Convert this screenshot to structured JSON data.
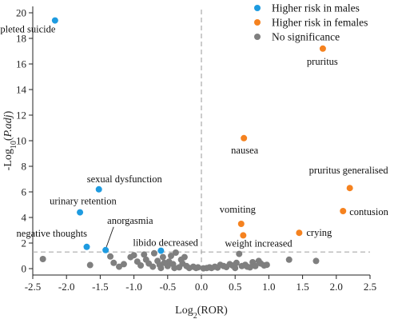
{
  "chart_data": {
    "type": "scatter",
    "xlabel": "Log",
    "xlabel_sub": "2",
    "xlabel_tail": "(ROR)",
    "ylabel_pre": "-Log",
    "ylabel_sub": "10",
    "ylabel_italic": "P.adj",
    "xlim": [
      -2.5,
      2.5
    ],
    "ylim": [
      -0.5,
      20.5
    ],
    "x_ticks": [
      -2.5,
      -2.0,
      -1.5,
      -1.0,
      -0.5,
      0.0,
      0.5,
      1.0,
      1.5,
      2.0,
      2.5
    ],
    "x_tick_labels": [
      "-2.5",
      "-2.0",
      "-1.5",
      "-1.0",
      "-0.5",
      "0.0",
      "0.5",
      "1.0",
      "1.5",
      "2.0",
      "2.5"
    ],
    "y_ticks": [
      0,
      2,
      4,
      6,
      8,
      10,
      12,
      14,
      16,
      18,
      20
    ],
    "y_tick_labels": [
      "0",
      "2",
      "4",
      "6",
      "8",
      "10",
      "12",
      "14",
      "16",
      "18",
      "20"
    ],
    "threshold_y": 1.3,
    "threshold_x": 0.0,
    "legend_position": "top-right",
    "series": [
      {
        "name": "Higher risk in males",
        "color": "#1e9be0",
        "points": [
          {
            "x": -2.17,
            "y": 19.4,
            "label": "completed suicide"
          },
          {
            "x": -1.52,
            "y": 6.2,
            "label": "sexual dysfunction"
          },
          {
            "x": -1.8,
            "y": 4.4,
            "label": "urinary retention"
          },
          {
            "x": -1.7,
            "y": 1.7,
            "label": "negative thoughts"
          },
          {
            "x": -1.42,
            "y": 1.45,
            "label": "anorgasmia"
          },
          {
            "x": -0.6,
            "y": 1.4,
            "label": "libido decreased"
          }
        ]
      },
      {
        "name": "Higher risk in females",
        "color": "#f5821f",
        "points": [
          {
            "x": 1.8,
            "y": 17.2,
            "label": "pruritus"
          },
          {
            "x": 0.63,
            "y": 10.2,
            "label": "nausea"
          },
          {
            "x": 2.2,
            "y": 6.3,
            "label": "pruritus generalised"
          },
          {
            "x": 2.1,
            "y": 4.5,
            "label": "contusion"
          },
          {
            "x": 0.59,
            "y": 3.5,
            "label": "vomiting"
          },
          {
            "x": 1.45,
            "y": 2.8,
            "label": "crying"
          },
          {
            "x": 0.62,
            "y": 2.6,
            "label": "weight increased"
          }
        ]
      },
      {
        "name": "No significance",
        "color": "#7f7f7f",
        "points": [
          {
            "x": -2.35,
            "y": 0.75
          },
          {
            "x": -1.65,
            "y": 0.28
          },
          {
            "x": -1.35,
            "y": 0.95
          },
          {
            "x": -1.3,
            "y": 0.45
          },
          {
            "x": -1.22,
            "y": 0.15
          },
          {
            "x": -1.15,
            "y": 0.35
          },
          {
            "x": -1.05,
            "y": 0.9
          },
          {
            "x": -1.0,
            "y": 1.05
          },
          {
            "x": -0.95,
            "y": 0.55
          },
          {
            "x": -0.9,
            "y": 0.25
          },
          {
            "x": -0.85,
            "y": 1.1
          },
          {
            "x": -0.82,
            "y": 0.7
          },
          {
            "x": -0.78,
            "y": 0.4
          },
          {
            "x": -0.72,
            "y": 0.15
          },
          {
            "x": -0.7,
            "y": 1.2
          },
          {
            "x": -0.65,
            "y": 0.6
          },
          {
            "x": -0.62,
            "y": 0.3
          },
          {
            "x": -0.57,
            "y": 0.9
          },
          {
            "x": -0.5,
            "y": 0.2
          },
          {
            "x": -0.48,
            "y": 0.55
          },
          {
            "x": -0.42,
            "y": 0.35
          },
          {
            "x": -0.38,
            "y": 1.25
          },
          {
            "x": -0.33,
            "y": 0.1
          },
          {
            "x": -0.3,
            "y": 0.7
          },
          {
            "x": -0.28,
            "y": 0.4
          },
          {
            "x": -0.22,
            "y": 0.2
          },
          {
            "x": -0.18,
            "y": 0.05
          },
          {
            "x": -0.12,
            "y": 0.15
          },
          {
            "x": -0.08,
            "y": 0.05
          },
          {
            "x": -0.05,
            "y": 0.1
          },
          {
            "x": -0.4,
            "y": 0.05
          },
          {
            "x": -0.6,
            "y": 0.05
          },
          {
            "x": -0.25,
            "y": 0.9
          },
          {
            "x": -0.45,
            "y": 1.0
          },
          {
            "x": -0.55,
            "y": 0.45
          },
          {
            "x": 0.03,
            "y": 0.02
          },
          {
            "x": 0.08,
            "y": 0.05
          },
          {
            "x": 0.12,
            "y": 0.1
          },
          {
            "x": 0.15,
            "y": 0.05
          },
          {
            "x": 0.2,
            "y": 0.15
          },
          {
            "x": 0.24,
            "y": 0.08
          },
          {
            "x": 0.28,
            "y": 0.3
          },
          {
            "x": 0.33,
            "y": 0.2
          },
          {
            "x": 0.37,
            "y": 0.12
          },
          {
            "x": 0.42,
            "y": 0.35
          },
          {
            "x": 0.46,
            "y": 0.25
          },
          {
            "x": 0.5,
            "y": 0.05
          },
          {
            "x": 0.52,
            "y": 0.45
          },
          {
            "x": 0.56,
            "y": 1.15
          },
          {
            "x": 0.6,
            "y": 0.2
          },
          {
            "x": 0.65,
            "y": 0.3
          },
          {
            "x": 0.68,
            "y": 0.15
          },
          {
            "x": 0.72,
            "y": 0.1
          },
          {
            "x": 0.76,
            "y": 0.5
          },
          {
            "x": 0.8,
            "y": 0.2
          },
          {
            "x": 0.85,
            "y": 0.6
          },
          {
            "x": 0.88,
            "y": 0.4
          },
          {
            "x": 0.93,
            "y": 0.25
          },
          {
            "x": 0.97,
            "y": 0.3
          },
          {
            "x": 1.3,
            "y": 0.7
          },
          {
            "x": 1.7,
            "y": 0.6
          }
        ]
      }
    ]
  }
}
